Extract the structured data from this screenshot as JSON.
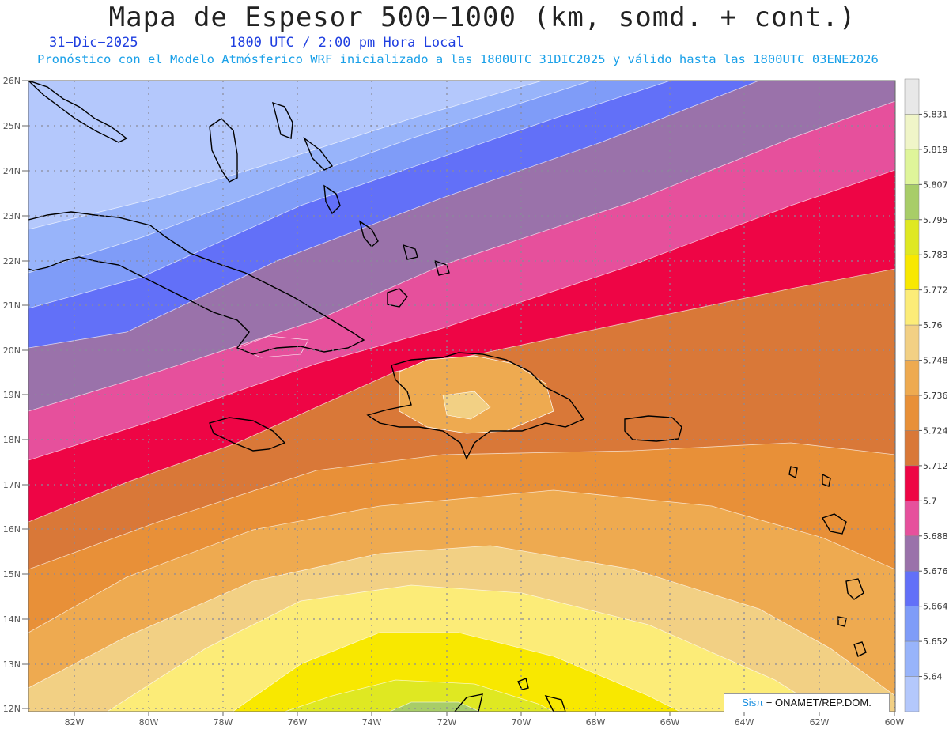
{
  "header": {
    "title": "Mapa de Espesor 500−1000 (km, somd. + cont.)",
    "date": "31−Dic−2025",
    "time": "1800 UTC / 2:00 pm Hora Local",
    "subtitle": "Pronóstico con el Modelo Atmósferico WRF inicializado a las 1800UTC_31DIC2025 y válido hasta las  1800UTC_03ENE2026"
  },
  "credit": {
    "logo": "Sisπ",
    "text": "− ONAMET/REP.DOM."
  },
  "map": {
    "lon_labels": [
      "82W",
      "80W",
      "78W",
      "76W",
      "74W",
      "72W",
      "70W",
      "68W",
      "66W",
      "64W",
      "62W",
      "60W"
    ],
    "lat_labels": [
      "26N",
      "25N",
      "24N",
      "23N",
      "22N",
      "21N",
      "20N",
      "19N",
      "18N",
      "17N",
      "16N",
      "15N",
      "14N",
      "13N",
      "12N"
    ]
  },
  "legend": {
    "labels": [
      "5.831",
      "5.819",
      "5.807",
      "5.795",
      "5.783",
      "5.772",
      "5.76",
      "5.748",
      "5.736",
      "5.724",
      "5.712",
      "5.7",
      "5.688",
      "5.676",
      "5.664",
      "5.652",
      "5.64"
    ],
    "colors": [
      "#e8e8e8",
      "#f0f5c8",
      "#dff59a",
      "#a8cd68",
      "#dfe822",
      "#f8e800",
      "#fcec78",
      "#f2d084",
      "#eeaa50",
      "#e89038",
      "#d97838",
      "#ee0545",
      "#e6509c",
      "#9a72aa",
      "#6270f8",
      "#7f9cf8",
      "#98b4fa",
      "#b4c8fc"
    ]
  }
}
